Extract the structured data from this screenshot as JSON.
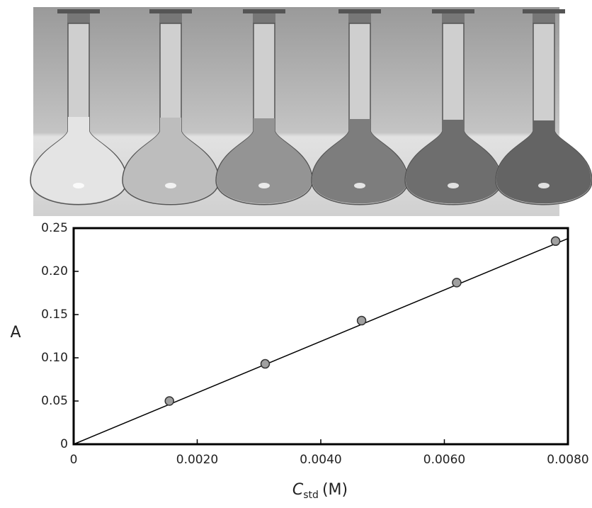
{
  "chart_data": {
    "type": "scatter",
    "x_label": {
      "symbol": "C",
      "subscript": "std",
      "unit": "(M)"
    },
    "y_label": "A",
    "x": [
      0.00155,
      0.0031,
      0.00466,
      0.0062,
      0.0078
    ],
    "series": [
      {
        "values": [
          0.05,
          0.093,
          0.143,
          0.187,
          0.235
        ],
        "color": "#a0a0a0"
      }
    ],
    "fit": {
      "x": [
        0,
        0.008
      ],
      "values": [
        0,
        0.238
      ],
      "color": "#000000"
    },
    "xlim": [
      0,
      0.008
    ],
    "ylim": [
      0,
      0.25
    ],
    "xticks": [
      0,
      {
        "value": 0.002,
        "label": "0.0020"
      },
      {
        "value": 0.004,
        "label": "0.0040"
      },
      {
        "value": 0.006,
        "label": "0.0060"
      },
      {
        "value": 0.008,
        "label": "0.0080"
      }
    ],
    "yticks": [
      0,
      0.05,
      {
        "value": 0.1,
        "label": "0.10"
      },
      0.15,
      {
        "value": 0.2,
        "label": "0.20"
      },
      0.25
    ],
    "grid": false
  }
}
